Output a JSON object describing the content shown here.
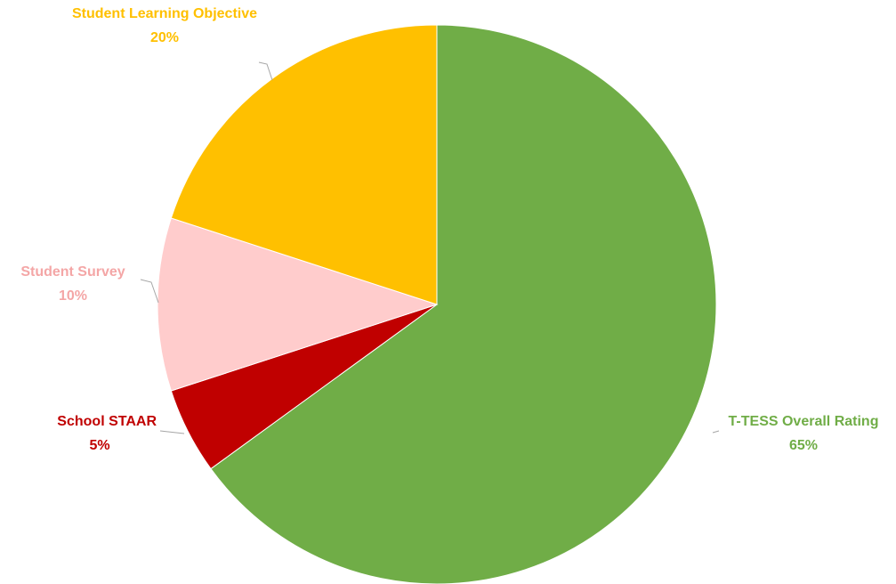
{
  "chart_data": {
    "type": "pie",
    "title": "",
    "start_angle_deg": 0,
    "direction": "clockwise",
    "legend": "none",
    "slices": [
      {
        "name": "T-TESS Overall Rating",
        "value": 65,
        "label": "65%",
        "color": "#70AD47"
      },
      {
        "name": "School STAAR",
        "value": 5,
        "label": "5%",
        "color": "#C00000"
      },
      {
        "name": "Student Survey",
        "value": 10,
        "label": "10%",
        "color": "#FFCCCC"
      },
      {
        "name": "Student Learning Objective",
        "value": 20,
        "label": "20%",
        "color": "#FFC000"
      }
    ],
    "label_colors": [
      "#70AD47",
      "#C00000",
      "#F4A6A6",
      "#FFC000"
    ],
    "leader_color": "#A6A6A6"
  }
}
